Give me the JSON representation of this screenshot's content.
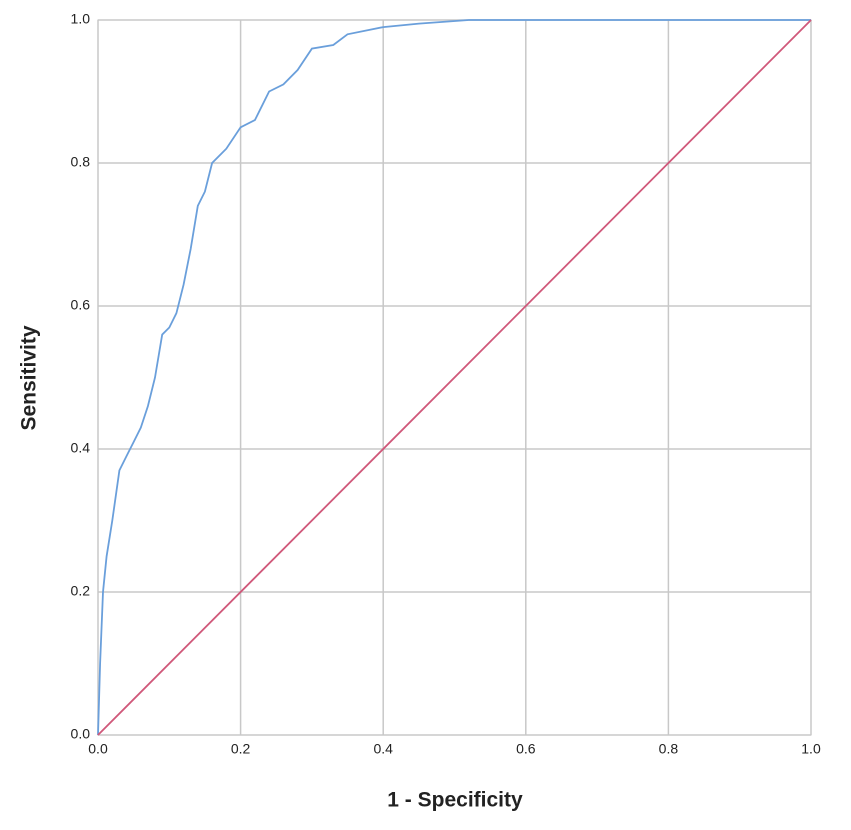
{
  "chart_data": {
    "type": "line",
    "xlabel": "1 - Specificity",
    "ylabel": "Sensitivity",
    "xlim": [
      0,
      1
    ],
    "ylim": [
      0,
      1
    ],
    "xticks": [
      {
        "value": 0,
        "label": "0.0"
      },
      0.2,
      0.4,
      0.6,
      0.8,
      {
        "value": 1,
        "label": "1.0"
      }
    ],
    "yticks": [
      {
        "value": 0,
        "label": "0.0"
      },
      0.2,
      0.4,
      0.6,
      0.8,
      {
        "value": 1,
        "label": "1.0"
      }
    ],
    "grid": true,
    "series": [
      {
        "color": "#6a9fdb",
        "x": [
          0,
          0.003,
          0.007,
          0.012,
          0.02,
          0.03,
          0.04,
          0.05,
          0.06,
          0.07,
          0.08,
          0.09,
          0.1,
          0.11,
          0.12,
          0.13,
          0.14,
          0.15,
          0.16,
          0.18,
          0.2,
          0.22,
          0.23,
          0.24,
          0.26,
          0.28,
          0.3,
          0.33,
          0.35,
          0.4,
          0.45,
          0.52,
          1
        ],
        "values": [
          0,
          0.1,
          0.2,
          0.25,
          0.3,
          0.37,
          0.39,
          0.41,
          0.43,
          0.46,
          0.5,
          0.56,
          0.57,
          0.59,
          0.63,
          0.68,
          0.74,
          0.76,
          0.8,
          0.82,
          0.85,
          0.86,
          0.88,
          0.9,
          0.91,
          0.93,
          0.96,
          0.965,
          0.98,
          0.99,
          0.995,
          1,
          1
        ]
      },
      {
        "color": "#d0587a",
        "x": [
          0,
          1
        ],
        "values": [
          0,
          1
        ]
      }
    ]
  }
}
